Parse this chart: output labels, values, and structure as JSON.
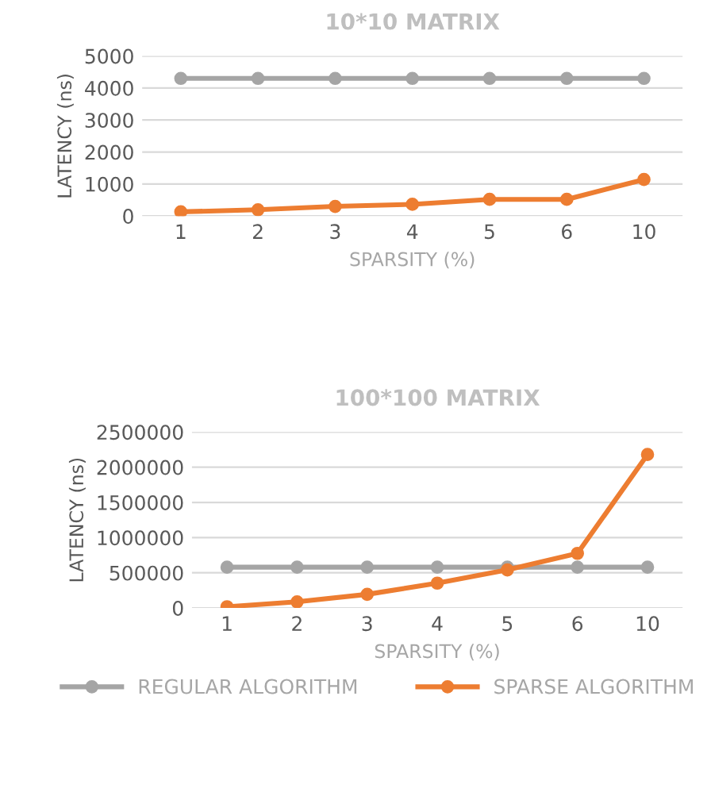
{
  "chart_data": [
    {
      "type": "line",
      "title": "10*10 MATRIX",
      "xlabel": "SPARSITY (%)",
      "ylabel": "LATENCY (ns)",
      "categories": [
        "1",
        "2",
        "3",
        "4",
        "5",
        "6",
        "10"
      ],
      "series": [
        {
          "color": "#a5a5a5",
          "values": [
            4300,
            4300,
            4300,
            4300,
            4300,
            4300,
            4300
          ]
        },
        {
          "color": "#ed7d31",
          "values": [
            130,
            195,
            300,
            365,
            520,
            520,
            1140
          ]
        }
      ],
      "ylim": [
        0,
        5000
      ],
      "yticks": [
        0,
        1000,
        2000,
        3000,
        4000,
        5000
      ],
      "grid": "y",
      "marker": "circle",
      "line_style": "solid"
    },
    {
      "type": "line",
      "title": "100*100 MATRIX",
      "xlabel": "SPARSITY (%)",
      "ylabel": "LATENCY (ns)",
      "categories": [
        "1",
        "2",
        "3",
        "4",
        "5",
        "6",
        "10"
      ],
      "series": [
        {
          "name": "REGULAR ALGORITHM",
          "color": "#a5a5a5",
          "values": [
            580000,
            580000,
            580000,
            580000,
            580000,
            580000,
            580000
          ]
        },
        {
          "name": "SPARSE ALGORITHM",
          "color": "#ed7d31",
          "values": [
            18000,
            88000,
            194000,
            353000,
            541000,
            776000,
            2180000
          ]
        }
      ],
      "ylim": [
        0,
        2500000
      ],
      "yticks": [
        0,
        500000,
        1000000,
        1500000,
        2000000,
        2500000
      ],
      "grid": "y",
      "marker": "circle",
      "line_style": "solid",
      "legend": "bottom"
    }
  ]
}
